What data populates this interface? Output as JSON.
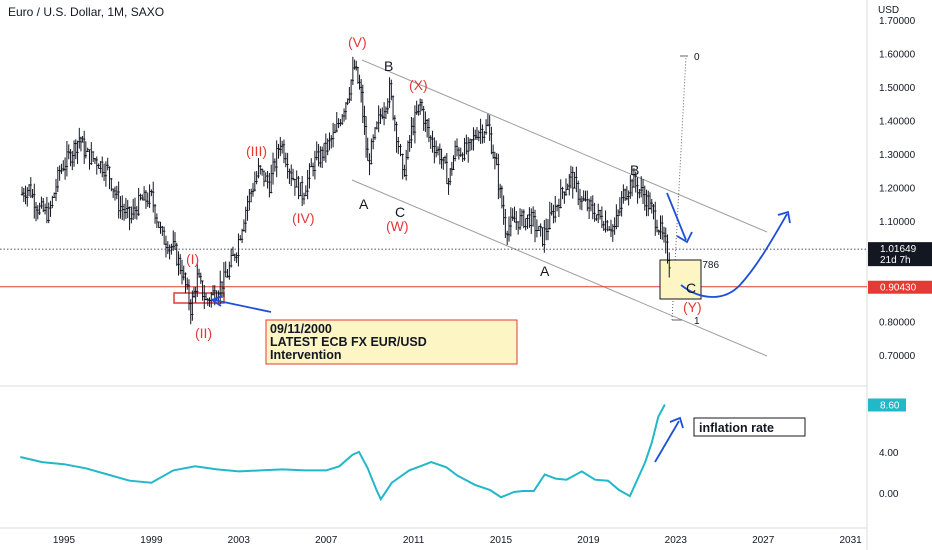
{
  "header": {
    "title": "Euro / U.S. Dollar, 1M, SAXO"
  },
  "colors": {
    "candle": "#131722",
    "wave": "#e53935",
    "accent": "#1e4fd8",
    "cpi": "#22b8c9",
    "hline": "#e53935",
    "channel": "#9e9e9e",
    "note_bg": "#fdf5c4"
  },
  "chart_data": {
    "type": "candlestick",
    "title": "Euro / U.S. Dollar, 1M, SAXO",
    "y_axis_label": "USD",
    "x_ticks": [
      "1995",
      "1999",
      "2003",
      "2007",
      "2011",
      "2015",
      "2019",
      "2023",
      "2027",
      "2031"
    ],
    "y_ticks": [
      "0.70000",
      "0.80000",
      "0.90000",
      "1.00000",
      "1.10000",
      "1.20000",
      "1.30000",
      "1.40000",
      "1.50000",
      "1.60000",
      "1.70000"
    ],
    "ylim": [
      0.62,
      1.76
    ],
    "price_points": [
      [
        1993.0,
        1.18
      ],
      [
        1993.4,
        1.2
      ],
      [
        1993.8,
        1.14
      ],
      [
        1994.3,
        1.12
      ],
      [
        1994.8,
        1.25
      ],
      [
        1995.3,
        1.3
      ],
      [
        1995.7,
        1.35
      ],
      [
        1996.0,
        1.3
      ],
      [
        1996.5,
        1.28
      ],
      [
        1997.0,
        1.25
      ],
      [
        1997.5,
        1.15
      ],
      [
        1998.0,
        1.11
      ],
      [
        1998.5,
        1.16
      ],
      [
        1999.0,
        1.17
      ],
      [
        1999.5,
        1.05
      ],
      [
        2000.0,
        1.02
      ],
      [
        2000.4,
        0.95
      ],
      [
        2000.8,
        0.84
      ],
      [
        2001.1,
        0.93
      ],
      [
        2001.5,
        0.86
      ],
      [
        2001.9,
        0.89
      ],
      [
        2002.4,
        0.93
      ],
      [
        2002.9,
        1.02
      ],
      [
        2003.4,
        1.16
      ],
      [
        2003.9,
        1.25
      ],
      [
        2004.4,
        1.21
      ],
      [
        2004.9,
        1.34
      ],
      [
        2005.4,
        1.24
      ],
      [
        2005.9,
        1.18
      ],
      [
        2006.4,
        1.27
      ],
      [
        2006.9,
        1.31
      ],
      [
        2007.4,
        1.36
      ],
      [
        2007.9,
        1.46
      ],
      [
        2008.3,
        1.56
      ],
      [
        2008.6,
        1.47
      ],
      [
        2008.9,
        1.27
      ],
      [
        2009.4,
        1.4
      ],
      [
        2009.9,
        1.49
      ],
      [
        2010.3,
        1.33
      ],
      [
        2010.5,
        1.23
      ],
      [
        2010.9,
        1.37
      ],
      [
        2011.3,
        1.45
      ],
      [
        2011.7,
        1.35
      ],
      [
        2012.2,
        1.3
      ],
      [
        2012.6,
        1.22
      ],
      [
        2012.9,
        1.31
      ],
      [
        2013.5,
        1.31
      ],
      [
        2013.9,
        1.37
      ],
      [
        2014.4,
        1.38
      ],
      [
        2014.8,
        1.25
      ],
      [
        2015.2,
        1.08
      ],
      [
        2015.7,
        1.1
      ],
      [
        2016.3,
        1.11
      ],
      [
        2016.9,
        1.05
      ],
      [
        2017.4,
        1.13
      ],
      [
        2017.9,
        1.2
      ],
      [
        2018.2,
        1.23
      ],
      [
        2018.7,
        1.16
      ],
      [
        2019.2,
        1.13
      ],
      [
        2019.7,
        1.1
      ],
      [
        2020.2,
        1.08
      ],
      [
        2020.6,
        1.18
      ],
      [
        2021.0,
        1.22
      ],
      [
        2021.5,
        1.18
      ],
      [
        2021.9,
        1.13
      ],
      [
        2022.3,
        1.07
      ],
      [
        2022.7,
        0.98
      ]
    ],
    "cpi_points": [
      [
        1993.0,
        3.5
      ],
      [
        1994.0,
        3.0
      ],
      [
        1995.0,
        2.8
      ],
      [
        1996.0,
        2.4
      ],
      [
        1997.0,
        1.8
      ],
      [
        1998.0,
        1.2
      ],
      [
        1999.0,
        1.0
      ],
      [
        2000.0,
        2.2
      ],
      [
        2001.0,
        2.6
      ],
      [
        2002.0,
        2.3
      ],
      [
        2003.0,
        2.1
      ],
      [
        2004.0,
        2.2
      ],
      [
        2005.0,
        2.3
      ],
      [
        2006.0,
        2.2
      ],
      [
        2007.0,
        2.2
      ],
      [
        2007.6,
        2.6
      ],
      [
        2008.2,
        3.7
      ],
      [
        2008.5,
        4.0
      ],
      [
        2008.9,
        2.4
      ],
      [
        2009.3,
        0.3
      ],
      [
        2009.5,
        -0.6
      ],
      [
        2010.0,
        1.0
      ],
      [
        2010.8,
        2.2
      ],
      [
        2011.3,
        2.6
      ],
      [
        2011.8,
        3.0
      ],
      [
        2012.5,
        2.5
      ],
      [
        2013.0,
        1.7
      ],
      [
        2013.8,
        0.8
      ],
      [
        2014.5,
        0.3
      ],
      [
        2015.0,
        -0.4
      ],
      [
        2015.6,
        0.1
      ],
      [
        2016.0,
        0.2
      ],
      [
        2016.5,
        0.2
      ],
      [
        2017.0,
        1.8
      ],
      [
        2017.5,
        1.4
      ],
      [
        2018.0,
        1.3
      ],
      [
        2018.7,
        2.1
      ],
      [
        2019.3,
        1.3
      ],
      [
        2019.9,
        1.2
      ],
      [
        2020.4,
        0.3
      ],
      [
        2020.9,
        -0.3
      ],
      [
        2021.3,
        1.6
      ],
      [
        2021.6,
        3.0
      ],
      [
        2021.9,
        4.9
      ],
      [
        2022.2,
        7.4
      ],
      [
        2022.5,
        8.6
      ]
    ],
    "cpi_ticks": [
      "0.00",
      "4.00"
    ],
    "cpi_ylim": [
      -3.2,
      10.2
    ],
    "last_price_label": "1.01649",
    "last_price_value": 1.0165,
    "countdown": "21d 7h",
    "hline_label": "0.90430",
    "hline_value": 0.9043,
    "cpi_last_label": "8.60",
    "cpi_last_value": 8.6,
    "fib_labels": {
      "zero": "0",
      "fib786": "0.786",
      "one": "1"
    },
    "wave_labels": {
      "I": "(I)",
      "II": "(II)",
      "III": "(III)",
      "IV": "(IV)",
      "V": "(V)",
      "X": "(X)",
      "W": "(W)",
      "Y": "(Y)",
      "A1": "A",
      "B1": "B",
      "C1": "C",
      "A2": "A",
      "B2": "B",
      "C2": "C"
    },
    "note": {
      "line1": "09/11/2000",
      "line2": "LATEST ECB FX EUR/USD",
      "line3": "Intervention"
    },
    "inflation_label": "inflation rate"
  }
}
